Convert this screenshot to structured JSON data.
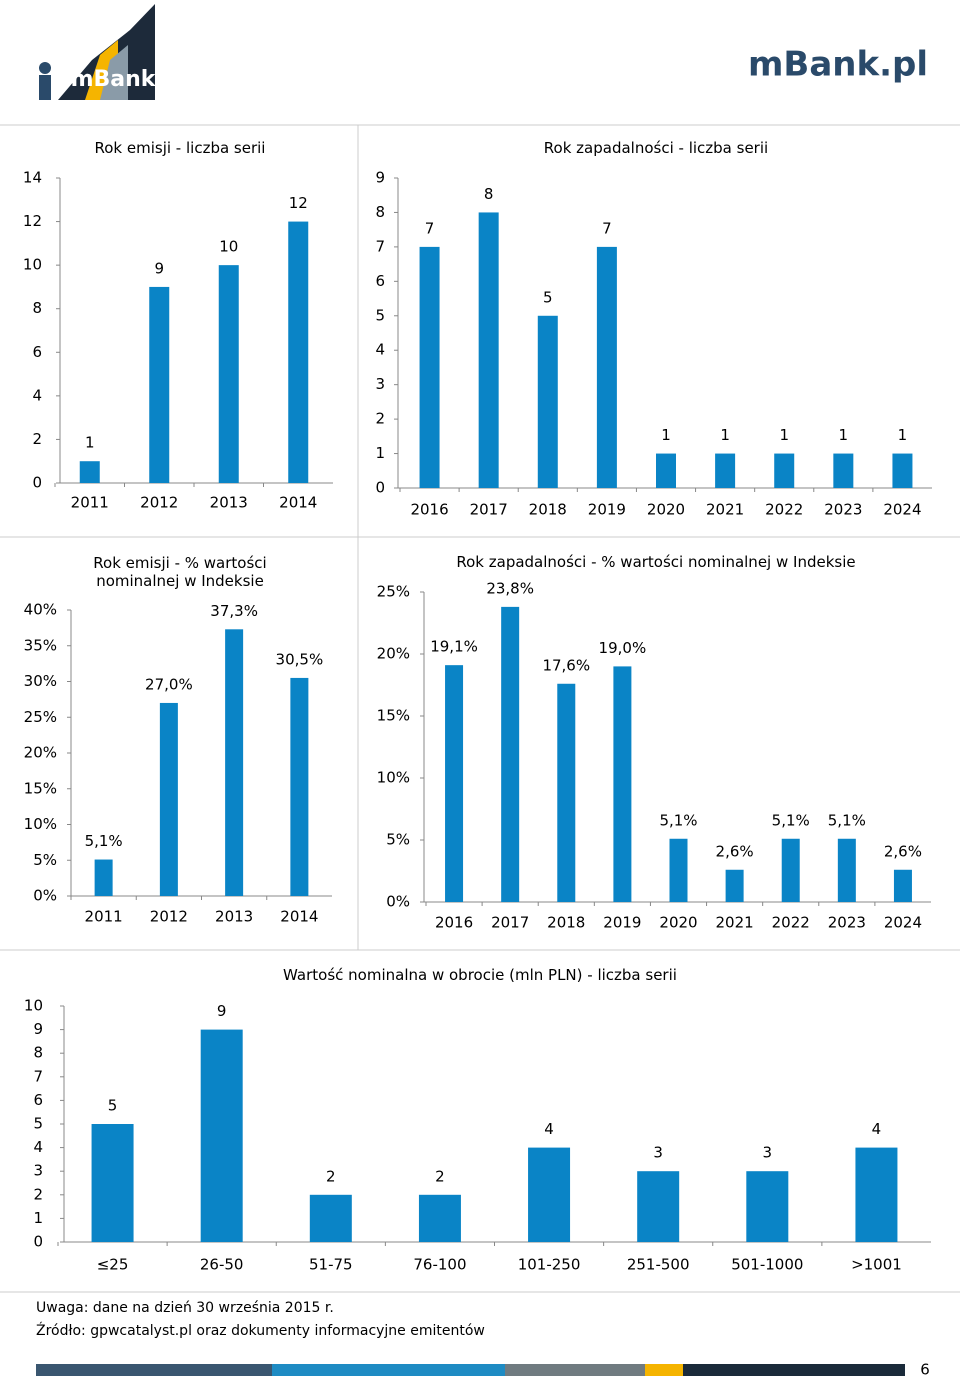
{
  "header": {
    "logo_left": "mBank",
    "logo_right": "mBank.pl"
  },
  "chart_data": [
    {
      "type": "bar",
      "title": "Rok emisji - liczba serii",
      "categories": [
        "2011",
        "2012",
        "2013",
        "2014"
      ],
      "values": [
        1,
        9,
        10,
        12
      ],
      "color": "#0a84c6",
      "ylim": [
        0,
        14
      ],
      "yticks": [
        0,
        2,
        4,
        6,
        8,
        10,
        12,
        14
      ]
    },
    {
      "type": "bar",
      "title": "Rok zapadalności - liczba serii",
      "categories": [
        "2016",
        "2017",
        "2018",
        "2019",
        "2020",
        "2021",
        "2022",
        "2023",
        "2024"
      ],
      "values": [
        7,
        8,
        5,
        7,
        1,
        1,
        1,
        1,
        1
      ],
      "color": "#0a84c6",
      "ylim": [
        0,
        9
      ],
      "yticks": [
        0,
        1,
        2,
        3,
        4,
        5,
        6,
        7,
        8,
        9
      ]
    },
    {
      "type": "bar",
      "title": "Rok emisji - % wartości nominalnej w Indeksie",
      "categories": [
        "2011",
        "2012",
        "2013",
        "2014"
      ],
      "values": [
        5.1,
        27.0,
        37.3,
        30.5
      ],
      "value_labels": [
        "5,1%",
        "27,0%",
        "37,3%",
        "30,5%"
      ],
      "color": "#0a84c6",
      "ylim": [
        0,
        40
      ],
      "yticks": [
        {
          "value": 0,
          "label": "0%"
        },
        {
          "value": 5,
          "label": "5%"
        },
        {
          "value": 10,
          "label": "10%"
        },
        {
          "value": 15,
          "label": "15%"
        },
        {
          "value": 20,
          "label": "20%"
        },
        {
          "value": 25,
          "label": "25%"
        },
        {
          "value": 30,
          "label": "30%"
        },
        {
          "value": 35,
          "label": "35%"
        },
        {
          "value": 40,
          "label": "40%"
        }
      ]
    },
    {
      "type": "bar",
      "title": "Rok zapadalności - % wartości nominalnej w Indeksie",
      "categories": [
        "2016",
        "2017",
        "2018",
        "2019",
        "2020",
        "2021",
        "2022",
        "2023",
        "2024"
      ],
      "values": [
        19.1,
        23.8,
        17.6,
        19.0,
        5.1,
        2.6,
        5.1,
        5.1,
        2.6
      ],
      "value_labels": [
        "19,1%",
        "23,8%",
        "17,6%",
        "19,0%",
        "5,1%",
        "2,6%",
        "5,1%",
        "5,1%",
        "2,6%"
      ],
      "color": "#0a84c6",
      "ylim": [
        0,
        25
      ],
      "yticks": [
        {
          "value": 0,
          "label": "0%"
        },
        {
          "value": 5,
          "label": "5%"
        },
        {
          "value": 10,
          "label": "10%"
        },
        {
          "value": 15,
          "label": "15%"
        },
        {
          "value": 20,
          "label": "20%"
        },
        {
          "value": 25,
          "label": "25%"
        }
      ]
    },
    {
      "type": "bar",
      "title": "Wartość nominalna w obrocie (mln PLN) - liczba serii",
      "categories": [
        "≤25",
        "26-50",
        "51-75",
        "76-100",
        "101-250",
        "251-500",
        "501-1000",
        ">1001"
      ],
      "values": [
        5,
        9,
        2,
        2,
        4,
        3,
        3,
        4
      ],
      "color": "#0a84c6",
      "ylim": [
        0,
        10
      ],
      "yticks": [
        0,
        1,
        2,
        3,
        4,
        5,
        6,
        7,
        8,
        9,
        10
      ]
    }
  ],
  "notes": [
    "Uwaga: dane na dzień 30 września 2015 r.",
    "Źródło: gpwcatalyst.pl oraz dokumenty informacyjne emitentów"
  ],
  "page_number": "6"
}
